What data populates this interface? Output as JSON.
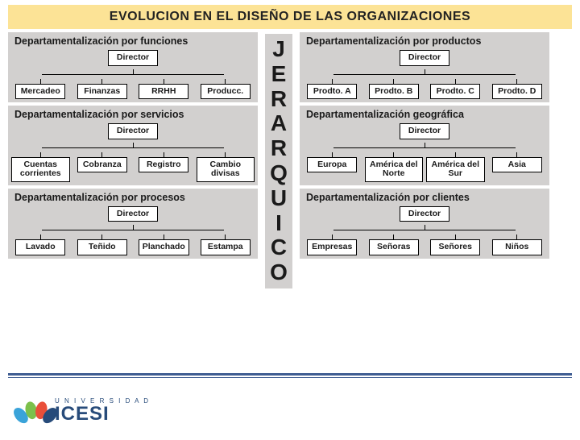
{
  "title": "EVOLUCION EN EL DISEÑO DE LAS ORGANIZACIONES",
  "center_word": "JERARQUICO",
  "colors": {
    "title_bg": "#fce396",
    "panel_bg": "#d2d0cf",
    "node_bg": "#ffffff",
    "node_border": "#000000",
    "line": "#000000",
    "text": "#1a1a1a",
    "footer_rule": "#3f5d92",
    "logo_primary": "#274b7a",
    "logo_leaf_colors": [
      "#3aa3d9",
      "#7cc04b",
      "#e94f3a",
      "#274b7a"
    ]
  },
  "typography": {
    "title_fontsize": 16,
    "panel_title_fontsize": 12.5,
    "node_fontsize": 10.5,
    "vertical_fontsize": 28,
    "font_family": "Verdana, Arial, sans-serif"
  },
  "panels": {
    "left": [
      {
        "title": "Departamentalización por funciones",
        "root": "Director",
        "children": [
          "Mercadeo",
          "Finanzas",
          "RRHH",
          "Producc."
        ]
      },
      {
        "title": "Departamentalización por servicios",
        "root": "Director",
        "children": [
          "Cuentas corrientes",
          "Cobranza",
          "Registro",
          "Cambio divisas"
        ]
      },
      {
        "title": "Departamentalización por procesos",
        "root": "Director",
        "children": [
          "Lavado",
          "Teñido",
          "Planchado",
          "Estampa"
        ]
      }
    ],
    "right": [
      {
        "title": "Departamentalización por productos",
        "root": "Director",
        "children": [
          "Prodto. A",
          "Prodto. B",
          "Prodto. C",
          "Prodto. D"
        ]
      },
      {
        "title": "Departamentalización geográfica",
        "root": "Director",
        "children": [
          "Europa",
          "América del Norte",
          "América del Sur",
          "Asia"
        ]
      },
      {
        "title": "Departamentalización por clientes",
        "root": "Director",
        "children": [
          "Empresas",
          "Señoras",
          "Señores",
          "Niños"
        ]
      }
    ]
  },
  "logo": {
    "line1": "U N I V E R S I D A D",
    "line2": "ICESI"
  }
}
